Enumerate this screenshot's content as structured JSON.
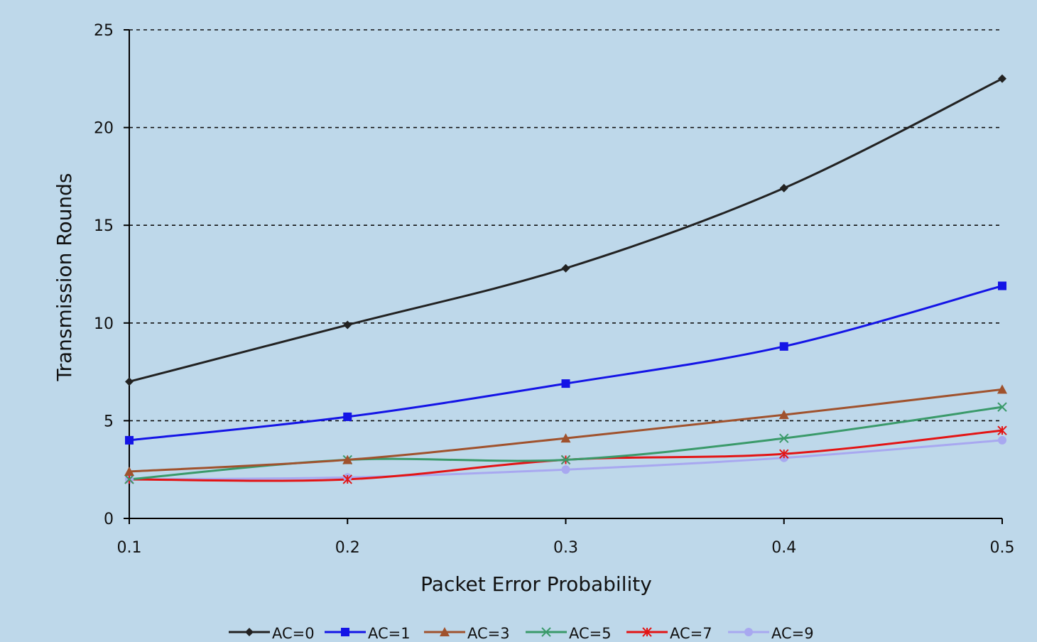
{
  "chart_data": {
    "type": "line",
    "title": "",
    "xlabel": "Packet Error Probability",
    "ylabel": "Transmission Rounds",
    "x": [
      0.1,
      0.2,
      0.3,
      0.4,
      0.5
    ],
    "x_tick_labels": [
      "0.1",
      "0.2",
      "0.3",
      "0.4",
      "0.5"
    ],
    "ylim": [
      0,
      25
    ],
    "y_ticks": [
      0,
      5,
      10,
      15,
      20,
      25
    ],
    "y_tick_labels": [
      "0",
      "5",
      "10",
      "15",
      "20",
      "25"
    ],
    "grid": "horizontal dashed",
    "legend_position": "bottom",
    "series": [
      {
        "name": "AC=0",
        "values": [
          7.0,
          9.9,
          12.8,
          16.9,
          22.5
        ],
        "color": "#222222",
        "marker": "diamond"
      },
      {
        "name": "AC=1",
        "values": [
          4.0,
          5.2,
          6.9,
          8.8,
          11.9
        ],
        "color": "#1414e6",
        "marker": "square"
      },
      {
        "name": "AC=3",
        "values": [
          2.4,
          3.0,
          4.1,
          5.3,
          6.6
        ],
        "color": "#a0522d",
        "marker": "triangle"
      },
      {
        "name": "AC=5",
        "values": [
          2.0,
          3.0,
          3.0,
          4.1,
          5.7
        ],
        "color": "#3a9a6a",
        "marker": "x"
      },
      {
        "name": "AC=7",
        "values": [
          2.0,
          2.0,
          3.0,
          3.3,
          4.5
        ],
        "color": "#e31414",
        "marker": "star"
      },
      {
        "name": "AC=9",
        "values": [
          2.0,
          2.1,
          2.5,
          3.1,
          4.0
        ],
        "color": "#a8a8f0",
        "marker": "circle"
      }
    ]
  }
}
